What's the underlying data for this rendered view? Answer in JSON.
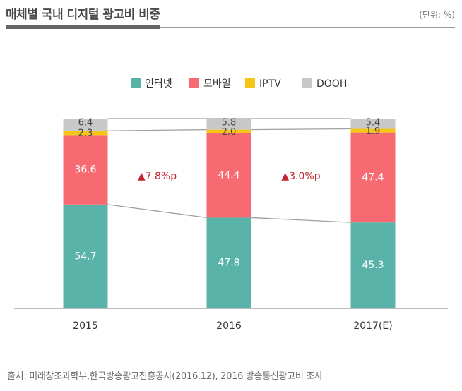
{
  "header": {
    "title": "매체별 국내 디지털 광고비 비중",
    "unit": "(단위: %)"
  },
  "footer": {
    "source": "출처: 미래창조과학부,한국방송광고진흥공사(2016.12), 2016 방송통신광고비 조사"
  },
  "chart_data": {
    "type": "bar",
    "stacked": true,
    "categories": [
      "2015",
      "2016",
      "2017(E)"
    ],
    "series": [
      {
        "name": "인터넷",
        "color": "#59b3a9",
        "values": [
          54.7,
          47.8,
          45.3
        ]
      },
      {
        "name": "모바일",
        "color": "#f76a72",
        "values": [
          36.6,
          44.4,
          47.4
        ]
      },
      {
        "name": "IPTV",
        "color": "#f5c518",
        "values": [
          2.3,
          2.0,
          1.9
        ]
      },
      {
        "name": "DOOH",
        "color": "#c8c8c8",
        "values": [
          6.4,
          5.8,
          5.4
        ]
      }
    ],
    "ylim": [
      0,
      100
    ],
    "annotations": [
      "▲7.8%p",
      "▲3.0%p"
    ],
    "annotation_color": "#c0262d",
    "legend_position": "top-center"
  }
}
